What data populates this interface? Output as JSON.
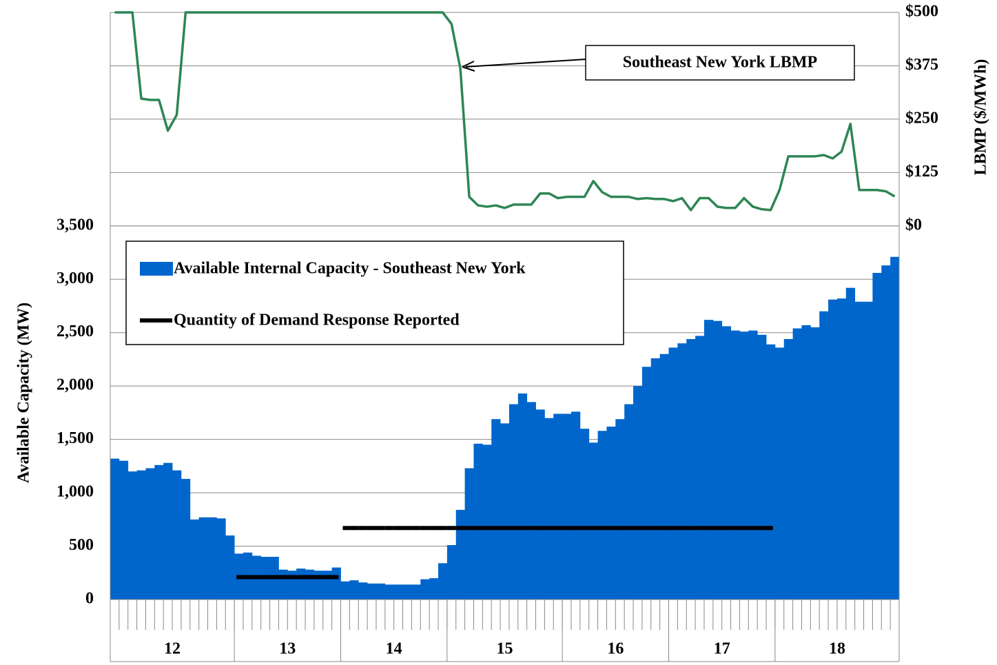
{
  "chart_data": {
    "type": "combo",
    "y_axis_label": "Available Capacity (MW)",
    "y2_axis_label": "LBMP ($/MWh)",
    "annotation": "Southeast New York LBMP",
    "groups": [
      {
        "label": "12",
        "span": 14
      },
      {
        "label": "13",
        "span": 12
      },
      {
        "label": "14",
        "span": 12
      },
      {
        "label": "15",
        "span": 13
      },
      {
        "label": "16",
        "span": 12
      },
      {
        "label": "17",
        "span": 12
      },
      {
        "label": "18",
        "span": 14
      }
    ],
    "categories": [
      null,
      null,
      null,
      null,
      null,
      null,
      null,
      null,
      null,
      null,
      null,
      null,
      null,
      null,
      null,
      null,
      null,
      null,
      null,
      null,
      null,
      null,
      null,
      null,
      null,
      null,
      null,
      null,
      null,
      null,
      null,
      null,
      null,
      null,
      null,
      null,
      null,
      null,
      null,
      null,
      null,
      null,
      null,
      null,
      null,
      null,
      null,
      null,
      null,
      null,
      null,
      null,
      null,
      null,
      null,
      null,
      null,
      null,
      null,
      null,
      null,
      null,
      null,
      null,
      null,
      null,
      null,
      null,
      null,
      null,
      null,
      null,
      null,
      null,
      null,
      null,
      null,
      null,
      null,
      null,
      null,
      null,
      null,
      null,
      null,
      null,
      null,
      null,
      null
    ],
    "ylim": [
      0,
      5500
    ],
    "yticks": [
      0,
      500,
      {
        "value": 1000,
        "label": "1,000"
      },
      {
        "value": 1500,
        "label": "1,500"
      },
      {
        "value": 2000,
        "label": "2,000"
      },
      {
        "value": 2500,
        "label": "2,500"
      },
      {
        "value": 3000,
        "label": "3,000"
      },
      {
        "value": 3500,
        "label": "3,500"
      }
    ],
    "y2lim": [
      -875,
      500
    ],
    "y2ticks": [
      {
        "value": 0,
        "label": "$0"
      },
      {
        "value": 125,
        "label": "$125"
      },
      {
        "value": 250,
        "label": "$250"
      },
      {
        "value": 375,
        "label": "$375"
      },
      {
        "value": 500,
        "label": "$500"
      }
    ],
    "grid": true,
    "series": [
      {
        "name": "Available Internal Capacity - Southeast New York",
        "type": "bar",
        "color": "#0066cc",
        "values": [
          1320,
          1300,
          1200,
          1210,
          1230,
          1260,
          1280,
          1210,
          1130,
          750,
          770,
          770,
          760,
          600,
          430,
          440,
          410,
          400,
          400,
          280,
          270,
          290,
          280,
          270,
          270,
          300,
          170,
          180,
          160,
          150,
          150,
          140,
          140,
          140,
          140,
          190,
          200,
          340,
          510,
          840,
          1230,
          1460,
          1450,
          1690,
          1650,
          1830,
          1930,
          1850,
          1780,
          1700,
          1740,
          1740,
          1760,
          1600,
          1470,
          1580,
          1620,
          1690,
          1830,
          2000,
          2180,
          2260,
          2300,
          2360,
          2400,
          2440,
          2470,
          2620,
          2610,
          2560,
          2520,
          2510,
          2520,
          2480,
          2390,
          2360,
          2440,
          2540,
          2570,
          2550,
          2700,
          2810,
          2820,
          2920,
          2790,
          2790,
          3060,
          3130,
          3210
        ]
      },
      {
        "name": "Quantity of Demand Response Reported",
        "type": "segment",
        "color": "#000000",
        "values": [
          null,
          null,
          null,
          null,
          null,
          null,
          null,
          null,
          null,
          null,
          null,
          null,
          null,
          null,
          210,
          210,
          210,
          210,
          210,
          210,
          210,
          210,
          210,
          210,
          210,
          210,
          670,
          670,
          670,
          670,
          670,
          670,
          670,
          670,
          670,
          670,
          670,
          670,
          670,
          670,
          670,
          670,
          670,
          670,
          670,
          670,
          670,
          670,
          670,
          670,
          670,
          670,
          670,
          670,
          670,
          670,
          670,
          670,
          670,
          670,
          670,
          670,
          670,
          670,
          670,
          670,
          670,
          670,
          670,
          670,
          670,
          670,
          670,
          670,
          670,
          null,
          null,
          null,
          null,
          null,
          null,
          null,
          null,
          null,
          null,
          null,
          null,
          null,
          null
        ]
      },
      {
        "name": "Southeast New York LBMP",
        "type": "line",
        "axis": "y2",
        "color": "#2e8555",
        "values": [
          500,
          500,
          500,
          298,
          295,
          295,
          223,
          260,
          500,
          500,
          500,
          500,
          500,
          500,
          500,
          500,
          500,
          500,
          500,
          500,
          500,
          500,
          500,
          500,
          500,
          500,
          500,
          500,
          500,
          500,
          500,
          500,
          500,
          500,
          500,
          500,
          500,
          500,
          473,
          368,
          68,
          48,
          45,
          48,
          42,
          50,
          50,
          50,
          76,
          76,
          65,
          68,
          68,
          68,
          105,
          79,
          68,
          68,
          68,
          63,
          65,
          63,
          63,
          58,
          65,
          37,
          65,
          65,
          45,
          42,
          42,
          65,
          45,
          39,
          37,
          84,
          163,
          163,
          163,
          163,
          166,
          158,
          174,
          239,
          84,
          84,
          84,
          81,
          69
        ]
      }
    ]
  }
}
